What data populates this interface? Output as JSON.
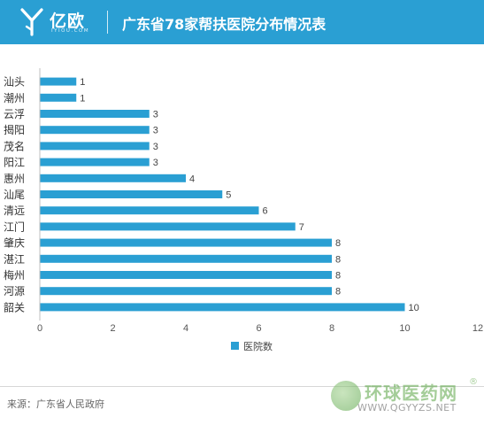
{
  "brand": {
    "logo_text": "亿欧",
    "logo_sub": "IYIOU.COM",
    "color": "#2a9fd3"
  },
  "header": {
    "title": "广东省78家帮扶医院分布情况表"
  },
  "footer": {
    "source": "来源：广东省人民政府"
  },
  "watermark": {
    "title": "环球医药网",
    "registered": "®",
    "url": "WWW.QGYYZS.NET"
  },
  "chart_data": {
    "type": "bar",
    "orientation": "horizontal",
    "categories": [
      "汕头",
      "潮州",
      "云浮",
      "揭阳",
      "茂名",
      "阳江",
      "惠州",
      "汕尾",
      "清远",
      "江门",
      "肇庆",
      "湛江",
      "梅州",
      "河源",
      "韶关"
    ],
    "series": [
      {
        "name": "医院数",
        "values": [
          1,
          1,
          3,
          3,
          3,
          3,
          4,
          5,
          6,
          7,
          8,
          8,
          8,
          8,
          10
        ]
      }
    ],
    "xlim": [
      0,
      12
    ],
    "xticks": [
      0,
      2,
      4,
      6,
      8,
      10,
      12
    ],
    "grid": false,
    "legend": "bottom-center",
    "bar_color": "#2a9fd3"
  }
}
